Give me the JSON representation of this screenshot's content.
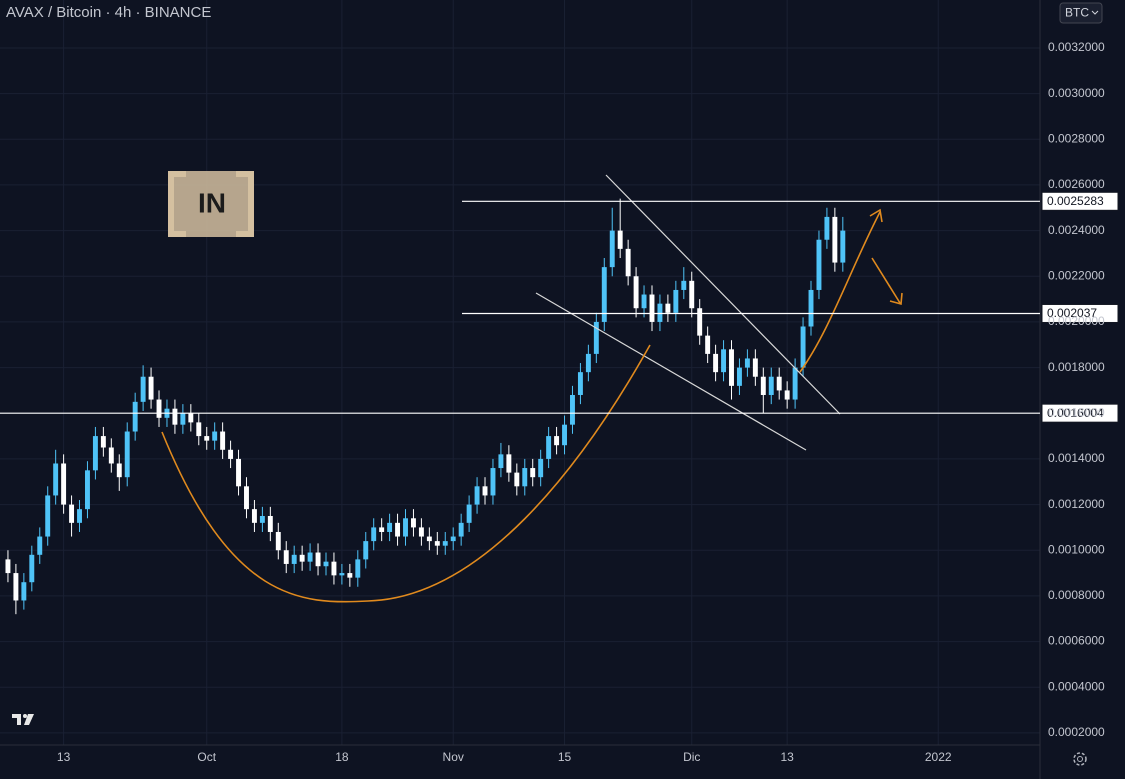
{
  "header": {
    "title": "AVAX / Bitcoin · 4h · BINANCE",
    "currency_button": "BTC",
    "watermark_logo": "IN"
  },
  "chart_data": {
    "type": "candlestick",
    "up_color": "#4fc3f7",
    "down_color": "#ffffff",
    "grid": true,
    "open": [
      0.00096,
      0.0009,
      0.00078,
      0.00086,
      0.00098,
      0.00106,
      0.00124,
      0.00138,
      0.0012,
      0.00112,
      0.00118,
      0.00135,
      0.0015,
      0.00145,
      0.00138,
      0.00132,
      0.00152,
      0.00165,
      0.00176,
      0.00166,
      0.00158,
      0.00162,
      0.00155,
      0.0016,
      0.00156,
      0.0015,
      0.00148,
      0.00152,
      0.00144,
      0.0014,
      0.00128,
      0.00118,
      0.00112,
      0.00115,
      0.00108,
      0.001,
      0.00094,
      0.00098,
      0.00095,
      0.00099,
      0.00093,
      0.00095,
      0.00089,
      0.0009,
      0.00088,
      0.00096,
      0.00104,
      0.0011,
      0.00108,
      0.00112,
      0.00106,
      0.00114,
      0.0011,
      0.00106,
      0.00104,
      0.00102,
      0.00104,
      0.00106,
      0.00112,
      0.0012,
      0.00128,
      0.00124,
      0.00136,
      0.00142,
      0.00134,
      0.00128,
      0.00136,
      0.00132,
      0.0014,
      0.0015,
      0.00146,
      0.00155,
      0.00168,
      0.00178,
      0.00186,
      0.002,
      0.00224,
      0.0024,
      0.00232,
      0.0022,
      0.00206,
      0.00212,
      0.002,
      0.00208,
      0.00204,
      0.00214,
      0.00218,
      0.00206,
      0.00194,
      0.00186,
      0.00178,
      0.00188,
      0.00172,
      0.0018,
      0.00184,
      0.00176,
      0.00168,
      0.00176,
      0.0017,
      0.00166,
      0.0018,
      0.00198,
      0.00214,
      0.00236,
      0.00246,
      0.00226
    ],
    "high": [
      0.001,
      0.00094,
      0.0009,
      0.00102,
      0.0011,
      0.00128,
      0.00144,
      0.00142,
      0.00124,
      0.00122,
      0.00139,
      0.00154,
      0.00154,
      0.00149,
      0.00142,
      0.00156,
      0.00169,
      0.00181,
      0.0018,
      0.0017,
      0.00166,
      0.00166,
      0.00164,
      0.00164,
      0.0016,
      0.00154,
      0.00156,
      0.00156,
      0.00148,
      0.00144,
      0.00132,
      0.00122,
      0.00119,
      0.00119,
      0.00112,
      0.00104,
      0.00102,
      0.00102,
      0.00103,
      0.00103,
      0.00099,
      0.00099,
      0.00094,
      0.00094,
      0.001,
      0.00108,
      0.00114,
      0.00114,
      0.00116,
      0.00116,
      0.00118,
      0.00118,
      0.00114,
      0.0011,
      0.00108,
      0.00108,
      0.0011,
      0.00116,
      0.00124,
      0.00132,
      0.00132,
      0.0014,
      0.00147,
      0.00146,
      0.00138,
      0.0014,
      0.0014,
      0.00144,
      0.00154,
      0.00154,
      0.00159,
      0.00172,
      0.00182,
      0.0019,
      0.00204,
      0.00228,
      0.0025,
      0.00254,
      0.00236,
      0.00224,
      0.00216,
      0.00216,
      0.00212,
      0.00212,
      0.00218,
      0.00224,
      0.00222,
      0.0021,
      0.00198,
      0.0019,
      0.00192,
      0.00192,
      0.00184,
      0.00188,
      0.00188,
      0.0018,
      0.0018,
      0.0018,
      0.00174,
      0.00184,
      0.00202,
      0.00218,
      0.0024,
      0.0025,
      0.0025,
      0.00246
    ],
    "low": [
      0.00086,
      0.00072,
      0.00074,
      0.00082,
      0.00094,
      0.00102,
      0.0012,
      0.00116,
      0.00106,
      0.00108,
      0.00114,
      0.00131,
      0.00141,
      0.00134,
      0.00126,
      0.00128,
      0.00148,
      0.00161,
      0.00162,
      0.00154,
      0.00154,
      0.00151,
      0.00151,
      0.00152,
      0.00146,
      0.00144,
      0.00144,
      0.0014,
      0.00136,
      0.00124,
      0.00114,
      0.00108,
      0.00108,
      0.00104,
      0.00096,
      0.0009,
      0.0009,
      0.00091,
      0.00091,
      0.00089,
      0.00089,
      0.00085,
      0.00085,
      0.00084,
      0.00084,
      0.00092,
      0.001,
      0.00104,
      0.00104,
      0.00102,
      0.00102,
      0.00106,
      0.00102,
      0.001,
      0.00098,
      0.00098,
      0.001,
      0.00102,
      0.00108,
      0.00116,
      0.0012,
      0.0012,
      0.00132,
      0.0013,
      0.00124,
      0.00124,
      0.00128,
      0.00128,
      0.00136,
      0.00142,
      0.00142,
      0.00151,
      0.00164,
      0.00174,
      0.00182,
      0.00196,
      0.0022,
      0.00228,
      0.00216,
      0.00202,
      0.00202,
      0.00196,
      0.00196,
      0.002,
      0.002,
      0.0021,
      0.00202,
      0.0019,
      0.00182,
      0.00174,
      0.00174,
      0.00166,
      0.00168,
      0.00176,
      0.00172,
      0.0016,
      0.00164,
      0.00166,
      0.00162,
      0.00162,
      0.00176,
      0.00194,
      0.0021,
      0.00232,
      0.00222,
      0.00222
    ],
    "close": [
      0.0009,
      0.00078,
      0.00086,
      0.00098,
      0.00106,
      0.00124,
      0.00138,
      0.0012,
      0.00112,
      0.00118,
      0.00135,
      0.0015,
      0.00145,
      0.00138,
      0.00132,
      0.00152,
      0.00165,
      0.00176,
      0.00166,
      0.00158,
      0.00162,
      0.00155,
      0.0016,
      0.00156,
      0.0015,
      0.00148,
      0.00152,
      0.00144,
      0.0014,
      0.00128,
      0.00118,
      0.00112,
      0.00115,
      0.00108,
      0.001,
      0.00094,
      0.00098,
      0.00095,
      0.00099,
      0.00093,
      0.00095,
      0.00089,
      0.0009,
      0.00088,
      0.00096,
      0.00104,
      0.0011,
      0.00108,
      0.00112,
      0.00106,
      0.00114,
      0.0011,
      0.00106,
      0.00104,
      0.00102,
      0.00104,
      0.00106,
      0.00112,
      0.0012,
      0.00128,
      0.00124,
      0.00136,
      0.00142,
      0.00134,
      0.00128,
      0.00136,
      0.00132,
      0.0014,
      0.0015,
      0.00146,
      0.00155,
      0.00168,
      0.00178,
      0.00186,
      0.002,
      0.00224,
      0.0024,
      0.00232,
      0.0022,
      0.00206,
      0.00212,
      0.002,
      0.00208,
      0.00204,
      0.00214,
      0.00218,
      0.00206,
      0.00194,
      0.00186,
      0.00178,
      0.00188,
      0.00172,
      0.0018,
      0.00184,
      0.00176,
      0.00168,
      0.00176,
      0.0017,
      0.00166,
      0.0018,
      0.00198,
      0.00214,
      0.00236,
      0.00246,
      0.00226,
      0.0024
    ],
    "xlim": [
      -1,
      129.8
    ],
    "xticks": [
      {
        "value": 7,
        "label": "13"
      },
      {
        "value": 25,
        "label": "Oct"
      },
      {
        "value": 42,
        "label": "18"
      },
      {
        "value": 56,
        "label": "Nov"
      },
      {
        "value": 70,
        "label": "15"
      },
      {
        "value": 86,
        "label": "Dic"
      },
      {
        "value": 98,
        "label": "13"
      },
      {
        "value": 117,
        "label": "2022"
      }
    ],
    "ylim": [
      0.000147,
      0.00341
    ],
    "yticks": [
      {
        "value": 0.0002,
        "label": "0.0002000"
      },
      {
        "value": 0.0004,
        "label": "0.0004000"
      },
      {
        "value": 0.0006,
        "label": "0.0006000"
      },
      {
        "value": 0.0008,
        "label": "0.0008000"
      },
      {
        "value": 0.001,
        "label": "0.0010000"
      },
      {
        "value": 0.0012,
        "label": "0.0012000"
      },
      {
        "value": 0.0014,
        "label": "0.0014000"
      },
      {
        "value": 0.0016,
        "label": "0.0016000"
      },
      {
        "value": 0.0018,
        "label": "0.0018000"
      },
      {
        "value": 0.002,
        "label": "0.0020000"
      },
      {
        "value": 0.0022,
        "label": "0.0022000"
      },
      {
        "value": 0.0024,
        "label": "0.0024000"
      },
      {
        "value": 0.0026,
        "label": "0.0026000"
      },
      {
        "value": 0.0028,
        "label": "0.0028000"
      },
      {
        "value": 0.003,
        "label": "0.0030000"
      },
      {
        "value": 0.0032,
        "label": "0.0032000"
      }
    ],
    "levels": [
      0.0025283,
      0.002037,
      0.0016004
    ]
  }
}
